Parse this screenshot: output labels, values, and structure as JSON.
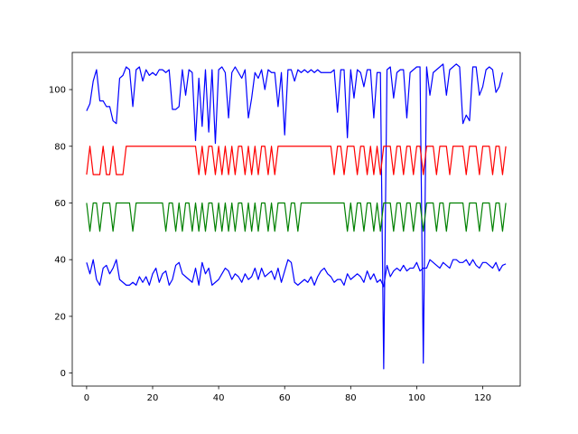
{
  "chart_data": {
    "type": "line",
    "title": "",
    "xlabel": "",
    "ylabel": "",
    "xlim": [
      -4.35,
      131.35
    ],
    "ylim": [
      -4.6,
      113.1
    ],
    "xticks": [
      0,
      20,
      40,
      60,
      80,
      100,
      120
    ],
    "yticks": [
      0,
      20,
      40,
      60,
      80,
      100
    ],
    "grid": false,
    "legend": "none",
    "series": [
      {
        "color": "#0000ff",
        "values": [
          92.5,
          95,
          103,
          107,
          96,
          96,
          94,
          94,
          89,
          88,
          104,
          105,
          108,
          107,
          94,
          107,
          108,
          103,
          107,
          105,
          106,
          105,
          107,
          107,
          106,
          107,
          93,
          93,
          94,
          107,
          98,
          107,
          106,
          82,
          104,
          87,
          107,
          85,
          107,
          81,
          107,
          108,
          106,
          90,
          106,
          108,
          106,
          104,
          107,
          90,
          97,
          106,
          104,
          107,
          100,
          107,
          106,
          106,
          94,
          106,
          84,
          107,
          107,
          103,
          107,
          106,
          107,
          106,
          107,
          106,
          107,
          106,
          106,
          106,
          106,
          107,
          92,
          107,
          107,
          83,
          107,
          97,
          107,
          106,
          101,
          107,
          107,
          90,
          106,
          106,
          1.5,
          107,
          108,
          97,
          106,
          107,
          107,
          90,
          106,
          107,
          108,
          108,
          3.5,
          108,
          98,
          106,
          107,
          108,
          109,
          98,
          107,
          108,
          109,
          108,
          88,
          91,
          89,
          108,
          108,
          98,
          101,
          107,
          108,
          107,
          99,
          101,
          106
        ]
      },
      {
        "color": "#ff0000",
        "values": [
          70,
          80,
          70,
          70,
          70,
          80,
          70,
          70,
          80,
          70,
          70,
          70,
          80,
          80,
          80,
          80,
          80,
          80,
          80,
          80,
          80,
          80,
          80,
          80,
          80,
          80,
          80,
          80,
          80,
          80,
          80,
          80,
          80,
          80,
          70,
          80,
          70,
          80,
          80,
          70,
          80,
          70,
          80,
          70,
          80,
          70,
          80,
          80,
          70,
          80,
          70,
          80,
          70,
          80,
          80,
          70,
          80,
          70,
          80,
          80,
          80,
          80,
          80,
          80,
          80,
          80,
          80,
          80,
          80,
          80,
          80,
          80,
          80,
          80,
          80,
          70,
          80,
          80,
          70,
          80,
          80,
          80,
          70,
          80,
          80,
          70,
          80,
          70,
          80,
          70,
          80,
          80,
          80,
          70,
          80,
          80,
          70,
          80,
          80,
          70,
          80,
          80,
          70,
          80,
          80,
          80,
          70,
          80,
          80,
          80,
          70,
          80,
          80,
          80,
          80,
          70,
          80,
          80,
          80,
          70,
          80,
          80,
          80,
          70,
          80,
          80,
          70,
          80
        ]
      },
      {
        "color": "#008000",
        "values": [
          60,
          50,
          60,
          60,
          50,
          60,
          60,
          60,
          50,
          60,
          60,
          60,
          60,
          60,
          50,
          60,
          60,
          60,
          60,
          60,
          60,
          60,
          60,
          60,
          50,
          60,
          60,
          50,
          60,
          50,
          60,
          60,
          50,
          60,
          50,
          60,
          50,
          60,
          60,
          50,
          60,
          50,
          60,
          50,
          60,
          50,
          60,
          60,
          50,
          60,
          50,
          60,
          50,
          60,
          60,
          50,
          60,
          50,
          60,
          60,
          60,
          50,
          60,
          60,
          50,
          60,
          60,
          60,
          60,
          60,
          60,
          60,
          60,
          60,
          60,
          60,
          60,
          60,
          60,
          50,
          60,
          50,
          60,
          60,
          50,
          60,
          60,
          50,
          60,
          50,
          60,
          60,
          60,
          50,
          60,
          60,
          50,
          60,
          60,
          50,
          60,
          60,
          50,
          60,
          60,
          60,
          50,
          60,
          60,
          50,
          60,
          60,
          60,
          60,
          60,
          50,
          60,
          60,
          60,
          50,
          60,
          60,
          60,
          50,
          60,
          60,
          50,
          60
        ]
      },
      {
        "color": "#0000ff",
        "values": [
          39,
          35,
          40,
          33,
          31,
          37,
          38,
          35,
          37,
          40,
          33,
          32,
          31,
          31,
          32,
          31,
          34,
          32,
          34,
          31,
          35,
          37,
          32,
          35,
          36,
          31,
          33,
          38,
          39,
          35,
          34,
          33,
          32,
          37,
          31,
          39,
          35,
          37,
          31,
          32,
          33,
          35,
          37,
          36,
          33,
          35,
          34,
          32,
          35,
          33,
          34,
          37,
          33,
          37,
          34,
          35,
          36,
          33,
          37,
          32,
          36,
          40,
          39,
          32,
          31,
          32,
          33,
          32,
          34,
          31,
          34,
          36,
          37,
          35,
          34,
          32,
          33,
          33,
          31,
          35,
          33,
          34,
          35,
          34,
          32,
          36,
          33,
          35,
          32,
          33,
          30.5,
          38,
          34,
          36,
          37,
          36,
          38,
          36,
          37,
          37,
          39,
          36,
          37,
          37,
          40,
          39,
          38,
          37,
          39,
          38,
          37,
          40,
          40,
          39,
          39,
          40,
          38,
          40,
          38,
          37,
          39,
          39,
          38,
          37,
          39,
          36,
          38,
          38.5
        ]
      }
    ]
  }
}
